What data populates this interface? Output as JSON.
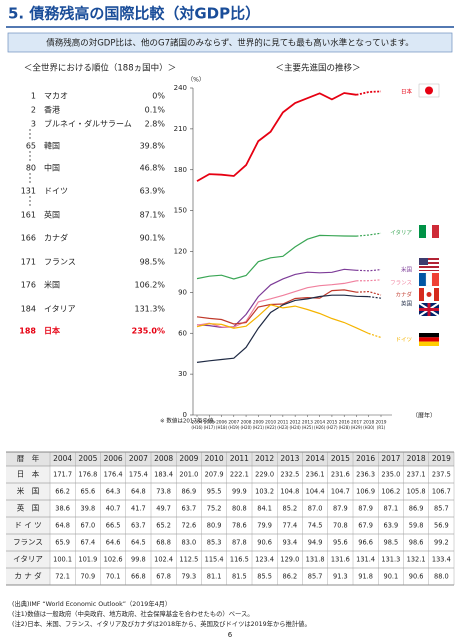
{
  "header": {
    "title": "5. 債務残高の国際比較（対GDP比）",
    "summary": "債務残高の対GDP比は、他のG7諸国のみならず、世界的に見ても最も高い水準となっています。"
  },
  "ranking": {
    "heading": "＜全世界における順位（188ヵ国中）＞",
    "rows": [
      [
        "1",
        "マカオ",
        "0%"
      ],
      [
        "2",
        "香港",
        "0.1%"
      ],
      [
        "3",
        "ブルネイ・ダルサラーム",
        "2.8%"
      ],
      [
        "65",
        "韓国",
        "39.8%"
      ],
      [
        "80",
        "中国",
        "46.8%"
      ],
      [
        "131",
        "ドイツ",
        "63.9%"
      ],
      [
        "161",
        "英国",
        "87.1%"
      ],
      [
        "166",
        "カナダ",
        "90.1%"
      ],
      [
        "171",
        "フランス",
        "98.5%"
      ],
      [
        "176",
        "米国",
        "106.2%"
      ],
      [
        "184",
        "イタリア",
        "131.3%"
      ],
      [
        "188",
        "日本",
        "235.0%"
      ]
    ],
    "note": "※ 数値は2017年の値。"
  },
  "chart_data": {
    "type": "line",
    "title": "＜主要先進国の推移＞",
    "y_unit": "（%）",
    "x_label": "（暦年）",
    "x": [
      2004,
      2005,
      2006,
      2007,
      2008,
      2009,
      2010,
      2011,
      2012,
      2013,
      2014,
      2015,
      2016,
      2017,
      2018,
      2019
    ],
    "x_sublabels": [
      "(H16)",
      "(H17)",
      "(H18)",
      "(H19)",
      "(H20)",
      "(H21)",
      "(H22)",
      "(H23)",
      "(H24)",
      "(H25)",
      "(H26)",
      "(H27)",
      "(H28)",
      "(H29)",
      "(H30)",
      "(R1)"
    ],
    "xlim": [
      2004,
      2019
    ],
    "ylim": [
      0,
      240
    ],
    "yticks": [
      0,
      30,
      60,
      90,
      120,
      150,
      180,
      210,
      240
    ],
    "series": [
      {
        "name": "日本",
        "color": "#e60012",
        "dashed_from": 2018,
        "values": [
          171.7,
          176.8,
          176.4,
          175.4,
          183.4,
          201.0,
          207.9,
          222.1,
          229.0,
          232.5,
          236.1,
          231.6,
          236.3,
          235.0,
          237.1,
          237.5
        ]
      },
      {
        "name": "イタリア",
        "color": "#3aa655",
        "dashed_from": 2018,
        "values": [
          100.1,
          101.9,
          102.6,
          99.8,
          102.4,
          112.5,
          115.4,
          116.5,
          123.4,
          129.0,
          131.8,
          131.6,
          131.4,
          131.3,
          132.1,
          133.4
        ]
      },
      {
        "name": "米国",
        "color": "#7d3c98",
        "dashed_from": 2018,
        "values": [
          66.2,
          65.6,
          64.3,
          64.8,
          73.8,
          86.9,
          95.5,
          99.9,
          103.2,
          104.8,
          104.4,
          104.7,
          106.9,
          106.2,
          105.8,
          106.7
        ]
      },
      {
        "name": "フランス",
        "color": "#f0809e",
        "dashed_from": 2018,
        "values": [
          65.9,
          67.4,
          64.6,
          64.5,
          68.8,
          83.0,
          85.3,
          87.8,
          90.6,
          93.4,
          94.9,
          95.6,
          96.6,
          98.5,
          98.6,
          99.2
        ]
      },
      {
        "name": "カナダ",
        "color": "#c0392b",
        "dashed_from": 2018,
        "values": [
          72.1,
          70.9,
          70.1,
          66.8,
          67.8,
          79.3,
          81.1,
          81.5,
          85.5,
          86.2,
          85.7,
          91.3,
          91.8,
          90.1,
          90.6,
          88.0
        ]
      },
      {
        "name": "英国",
        "color": "#1f2a44",
        "dashed_from": 2019,
        "values": [
          38.6,
          39.8,
          40.7,
          41.7,
          49.7,
          63.7,
          75.2,
          80.8,
          84.1,
          85.2,
          87.0,
          87.9,
          87.9,
          87.1,
          86.9,
          85.7
        ]
      },
      {
        "name": "ドイツ",
        "color": "#f5b400",
        "dashed_from": 2019,
        "values": [
          64.8,
          67.0,
          66.5,
          63.7,
          65.2,
          72.6,
          80.9,
          78.6,
          79.9,
          77.4,
          74.5,
          70.8,
          67.9,
          63.9,
          59.8,
          56.9
        ]
      }
    ]
  },
  "table": {
    "header": [
      "暦　年",
      "2004",
      "2005",
      "2006",
      "2007",
      "2008",
      "2009",
      "2010",
      "2011",
      "2012",
      "2013",
      "2014",
      "2015",
      "2016",
      "2017",
      "2018",
      "2019"
    ],
    "rows": [
      [
        "日　本",
        "171.7",
        "176.8",
        "176.4",
        "175.4",
        "183.4",
        "201.0",
        "207.9",
        "222.1",
        "229.0",
        "232.5",
        "236.1",
        "231.6",
        "236.3",
        "235.0",
        "237.1",
        "237.5"
      ],
      [
        "米　国",
        "66.2",
        "65.6",
        "64.3",
        "64.8",
        "73.8",
        "86.9",
        "95.5",
        "99.9",
        "103.2",
        "104.8",
        "104.4",
        "104.7",
        "106.9",
        "106.2",
        "105.8",
        "106.7"
      ],
      [
        "英　国",
        "38.6",
        "39.8",
        "40.7",
        "41.7",
        "49.7",
        "63.7",
        "75.2",
        "80.8",
        "84.1",
        "85.2",
        "87.0",
        "87.9",
        "87.9",
        "87.1",
        "86.9",
        "85.7"
      ],
      [
        "ド イ ツ",
        "64.8",
        "67.0",
        "66.5",
        "63.7",
        "65.2",
        "72.6",
        "80.9",
        "78.6",
        "79.9",
        "77.4",
        "74.5",
        "70.8",
        "67.9",
        "63.9",
        "59.8",
        "56.9"
      ],
      [
        "フランス",
        "65.9",
        "67.4",
        "64.6",
        "64.5",
        "68.8",
        "83.0",
        "85.3",
        "87.8",
        "90.6",
        "93.4",
        "94.9",
        "95.6",
        "96.6",
        "98.5",
        "98.6",
        "99.2"
      ],
      [
        "イタリア",
        "100.1",
        "101.9",
        "102.6",
        "99.8",
        "102.4",
        "112.5",
        "115.4",
        "116.5",
        "123.4",
        "129.0",
        "131.8",
        "131.6",
        "131.4",
        "131.3",
        "132.1",
        "133.4"
      ],
      [
        "カ ナ ダ",
        "72.1",
        "70.9",
        "70.1",
        "66.8",
        "67.8",
        "79.3",
        "81.1",
        "81.5",
        "85.5",
        "86.2",
        "85.7",
        "91.3",
        "91.8",
        "90.1",
        "90.6",
        "88.0"
      ]
    ]
  },
  "footnotes": [
    "(出典)IMF “World Economic Outlook”（2019年4月）",
    "(注1)数値は一般政府（中央政府、地方政府、社会保障基金を合わせたもの）ベース。",
    "(注2)日本、米国、フランス、イタリア及びカナダは2018年から、英国及びドイツは2019年から推計値。"
  ],
  "page_number": "6"
}
